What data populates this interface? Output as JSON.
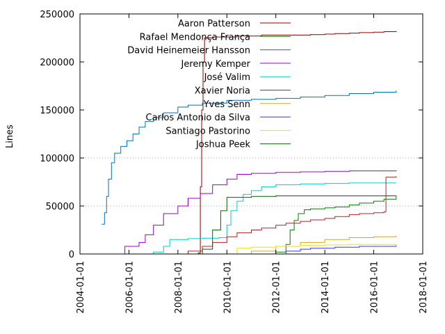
{
  "chart_data": {
    "type": "line",
    "title": "",
    "xlabel": "",
    "ylabel": "Lines",
    "xlim": [
      "2004-01-01",
      "2018-01-01"
    ],
    "ylim": [
      0,
      250000
    ],
    "grid": "horizontal dotted at 50000 and 100000",
    "legend_position": "top-right",
    "x_ticks": [
      "2004-01-01",
      "2006-01-01",
      "2008-01-01",
      "2010-01-01",
      "2012-01-01",
      "2014-01-01",
      "2016-01-01",
      "2018-01-01"
    ],
    "y_ticks": [
      0,
      50000,
      100000,
      150000,
      200000,
      250000
    ],
    "y_tick_labels": [
      "0",
      "50000",
      "100000",
      "150000",
      "200000",
      "250000"
    ],
    "series": [
      {
        "name": "Aaron Patterson",
        "color": "#8b0000",
        "points": [
          [
            "2008-06-01",
            0
          ],
          [
            "2008-11-01",
            1000
          ],
          [
            "2008-12-01",
            70000
          ],
          [
            "2008-12-20",
            150000
          ],
          [
            "2009-01-10",
            200000
          ],
          [
            "2009-02-01",
            225000
          ],
          [
            "2009-06-01",
            226000
          ],
          [
            "2010-06-01",
            227000
          ],
          [
            "2011-06-01",
            228000
          ],
          [
            "2012-06-01",
            228000
          ],
          [
            "2013-06-01",
            228500
          ],
          [
            "2014-01-01",
            229000
          ],
          [
            "2014-06-01",
            229500
          ],
          [
            "2015-01-01",
            230000
          ],
          [
            "2015-06-01",
            230500
          ],
          [
            "2016-01-01",
            231000
          ],
          [
            "2016-06-01",
            231500
          ],
          [
            "2016-12-01",
            232000
          ]
        ]
      },
      {
        "name": "Rafael Mendonça França",
        "color": "#008000",
        "points": [
          [
            "2011-06-01",
            0
          ],
          [
            "2012-01-01",
            2000
          ],
          [
            "2012-06-01",
            10000
          ],
          [
            "2012-08-01",
            25000
          ],
          [
            "2012-10-01",
            35000
          ],
          [
            "2012-12-01",
            42000
          ],
          [
            "2013-03-01",
            46000
          ],
          [
            "2013-06-01",
            47000
          ],
          [
            "2014-01-01",
            48000
          ],
          [
            "2014-06-01",
            49000
          ],
          [
            "2015-01-01",
            51000
          ],
          [
            "2015-06-01",
            53000
          ],
          [
            "2016-01-01",
            55000
          ],
          [
            "2016-06-01",
            57000
          ],
          [
            "2016-12-01",
            60000
          ]
        ]
      },
      {
        "name": "David Heinemeier Hansson",
        "color": "#0071bc",
        "points": [
          [
            "2004-11-20",
            31000
          ],
          [
            "2005-01-01",
            43000
          ],
          [
            "2005-02-01",
            60000
          ],
          [
            "2005-03-01",
            78000
          ],
          [
            "2005-04-15",
            95000
          ],
          [
            "2005-06-01",
            105000
          ],
          [
            "2005-09-01",
            112000
          ],
          [
            "2005-12-01",
            118000
          ],
          [
            "2006-03-01",
            125000
          ],
          [
            "2006-06-01",
            132000
          ],
          [
            "2006-09-01",
            138000
          ],
          [
            "2007-01-01",
            142000
          ],
          [
            "2007-06-01",
            147000
          ],
          [
            "2008-01-01",
            153000
          ],
          [
            "2008-06-01",
            155000
          ],
          [
            "2009-01-01",
            157000
          ],
          [
            "2010-01-01",
            160000
          ],
          [
            "2011-01-01",
            161000
          ],
          [
            "2012-01-01",
            162000
          ],
          [
            "2013-01-01",
            163500
          ],
          [
            "2014-01-01",
            165000
          ],
          [
            "2015-01-01",
            167000
          ],
          [
            "2016-01-01",
            168500
          ],
          [
            "2016-12-01",
            170000
          ]
        ]
      },
      {
        "name": "Jeremy Kemper",
        "color": "#9400d3",
        "points": [
          [
            "2005-09-01",
            0
          ],
          [
            "2005-11-01",
            8000
          ],
          [
            "2006-06-01",
            12000
          ],
          [
            "2006-09-01",
            20000
          ],
          [
            "2007-01-01",
            30000
          ],
          [
            "2007-06-01",
            42000
          ],
          [
            "2008-01-01",
            50000
          ],
          [
            "2008-06-01",
            58000
          ],
          [
            "2008-12-01",
            63000
          ],
          [
            "2009-06-01",
            72000
          ],
          [
            "2010-01-01",
            78000
          ],
          [
            "2010-06-01",
            83000
          ],
          [
            "2011-01-01",
            84000
          ],
          [
            "2012-01-01",
            85000
          ],
          [
            "2013-01-01",
            85500
          ],
          [
            "2014-01-01",
            86000
          ],
          [
            "2015-01-01",
            86500
          ],
          [
            "2016-12-01",
            87000
          ]
        ]
      },
      {
        "name": "José Valim",
        "color": "#00cccc",
        "points": [
          [
            "2006-03-01",
            0
          ],
          [
            "2007-01-01",
            2000
          ],
          [
            "2007-06-01",
            8000
          ],
          [
            "2007-09-01",
            15000
          ],
          [
            "2008-06-01",
            16000
          ],
          [
            "2009-01-01",
            16500
          ],
          [
            "2009-09-01",
            17000
          ],
          [
            "2010-01-01",
            30000
          ],
          [
            "2010-03-01",
            45000
          ],
          [
            "2010-06-01",
            55000
          ],
          [
            "2010-09-01",
            62000
          ],
          [
            "2011-01-01",
            66000
          ],
          [
            "2011-06-01",
            70000
          ],
          [
            "2012-01-01",
            72000
          ],
          [
            "2013-01-01",
            73000
          ],
          [
            "2014-01-01",
            73500
          ],
          [
            "2015-01-01",
            74000
          ],
          [
            "2016-12-01",
            74000
          ]
        ]
      },
      {
        "name": "Xavier Noria",
        "color": "#b22222",
        "points": [
          [
            "2008-01-01",
            0
          ],
          [
            "2008-06-01",
            3000
          ],
          [
            "2009-01-01",
            8000
          ],
          [
            "2009-06-01",
            12000
          ],
          [
            "2010-01-01",
            18000
          ],
          [
            "2010-06-01",
            22000
          ],
          [
            "2011-01-01",
            25000
          ],
          [
            "2011-06-01",
            27000
          ],
          [
            "2012-01-01",
            30000
          ],
          [
            "2012-06-01",
            32000
          ],
          [
            "2013-01-01",
            34000
          ],
          [
            "2013-06-01",
            35500
          ],
          [
            "2014-01-01",
            37000
          ],
          [
            "2014-06-01",
            39000
          ],
          [
            "2015-01-01",
            41000
          ],
          [
            "2015-06-01",
            42000
          ],
          [
            "2016-01-01",
            43000
          ],
          [
            "2016-06-01",
            44000
          ],
          [
            "2016-07-01",
            80000
          ],
          [
            "2016-12-01",
            81000
          ]
        ]
      },
      {
        "name": "Yves Senn",
        "color": "#daa520",
        "points": [
          [
            "2010-06-01",
            0
          ],
          [
            "2011-01-01",
            3000
          ],
          [
            "2012-01-01",
            8000
          ],
          [
            "2013-01-01",
            12000
          ],
          [
            "2014-01-01",
            15000
          ],
          [
            "2015-01-01",
            17000
          ],
          [
            "2016-01-01",
            18000
          ],
          [
            "2016-12-01",
            19000
          ]
        ]
      },
      {
        "name": "Carlos Antonio da Silva",
        "color": "#3333ff",
        "points": [
          [
            "2011-06-01",
            0
          ],
          [
            "2012-06-01",
            3000
          ],
          [
            "2013-01-01",
            5000
          ],
          [
            "2013-06-01",
            6000
          ],
          [
            "2014-06-01",
            7000
          ],
          [
            "2015-06-01",
            8000
          ],
          [
            "2016-12-01",
            9000
          ]
        ]
      },
      {
        "name": "Santiago Pastorino",
        "color": "#e6e600",
        "points": [
          [
            "2010-01-01",
            0
          ],
          [
            "2010-06-01",
            6000
          ],
          [
            "2011-01-01",
            7000
          ],
          [
            "2012-01-01",
            8000
          ],
          [
            "2013-01-01",
            9000
          ],
          [
            "2014-01-01",
            9500
          ],
          [
            "2015-01-01",
            10000
          ],
          [
            "2016-12-01",
            10500
          ]
        ]
      },
      {
        "name": "Joshua Peek",
        "color": "#006400",
        "points": [
          [
            "2008-06-01",
            0
          ],
          [
            "2009-01-01",
            5000
          ],
          [
            "2009-06-01",
            25000
          ],
          [
            "2009-10-01",
            45000
          ],
          [
            "2010-01-01",
            59000
          ],
          [
            "2011-01-01",
            60000
          ],
          [
            "2012-01-01",
            60500
          ],
          [
            "2013-01-01",
            60500
          ],
          [
            "2016-12-01",
            61000
          ]
        ]
      }
    ]
  }
}
